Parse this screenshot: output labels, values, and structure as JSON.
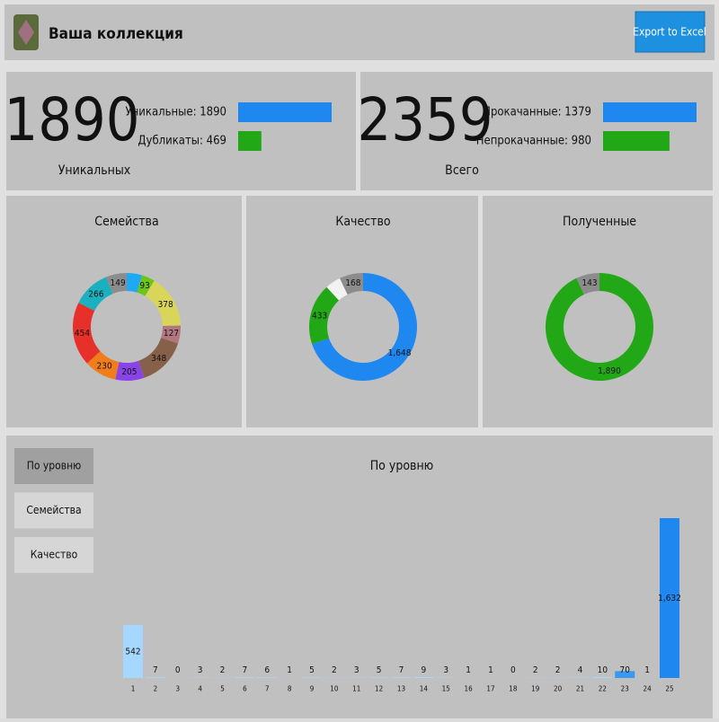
{
  "header": {
    "title": "Ваша коллекция",
    "button": "Export to Excel"
  },
  "stats": [
    {
      "big": "1890",
      "caption": "Уникальных",
      "bars": [
        {
          "label": "Уникальные: 1890",
          "value": 1890,
          "color": "#1e88f0"
        },
        {
          "label": "Дубликаты: 469",
          "value": 469,
          "color": "#22a816"
        }
      ]
    },
    {
      "big": "2359",
      "caption": "Всего",
      "bars": [
        {
          "label": "Прокачанные: 1379",
          "value": 1379,
          "color": "#1e88f0"
        },
        {
          "label": "Непрокачанные: 980",
          "value": 980,
          "color": "#22a816"
        }
      ]
    }
  ],
  "donuts": [
    {
      "type": "pie",
      "title": "Семейства",
      "values": [
        109,
        93,
        378,
        127,
        348,
        205,
        230,
        454,
        266,
        149
      ],
      "value_labels": [
        null,
        "93",
        "378",
        "127",
        "348",
        "205",
        "230",
        "454",
        "266",
        "149"
      ],
      "colors": [
        "#1ea8f5",
        "#6cc61a",
        "#d9d45a",
        "#b0787e",
        "#87604a",
        "#8844e6",
        "#f07c1a",
        "#e8302a",
        "#1ab0c0",
        "#8c8c8c"
      ]
    },
    {
      "type": "pie",
      "title": "Качество",
      "values": [
        1648,
        433,
        110,
        168
      ],
      "value_labels": [
        "1,648",
        "433",
        null,
        "168"
      ],
      "colors": [
        "#1e88f0",
        "#22a816",
        "#f2f2f2",
        "#8c8c8c"
      ]
    },
    {
      "type": "pie",
      "title": "Полученные",
      "values": [
        1890,
        143
      ],
      "value_labels": [
        "1,890",
        "143"
      ],
      "colors": [
        "#22a816",
        "#8c8c8c"
      ]
    }
  ],
  "tabs": [
    "По уровню",
    "Семейства",
    "Качество"
  ],
  "chart_data": {
    "type": "bar",
    "title": "По уровню",
    "categories": [
      "1",
      "2",
      "3",
      "4",
      "5",
      "6",
      "7",
      "8",
      "9",
      "10",
      "11",
      "12",
      "13",
      "14",
      "15",
      "16",
      "17",
      "18",
      "19",
      "20",
      "21",
      "22",
      "23",
      "24",
      "25"
    ],
    "values": [
      542,
      7,
      0,
      3,
      2,
      7,
      6,
      1,
      5,
      2,
      3,
      5,
      7,
      9,
      3,
      1,
      1,
      0,
      2,
      2,
      4,
      10,
      70,
      1,
      1632
    ],
    "value_labels": [
      "542",
      "7",
      "0",
      "3",
      "2",
      "7",
      "6",
      "1",
      "5",
      "2",
      "3",
      "5",
      "7",
      "9",
      "3",
      "1",
      "1",
      "0",
      "2",
      "2",
      "4",
      "10",
      "70",
      "1",
      "1,632"
    ],
    "colors": [
      "#a6d8ff",
      "#a6d8ff",
      "#a6d8ff",
      "#a6d8ff",
      "#a6d8ff",
      "#a6d8ff",
      "#a6d8ff",
      "#a6d8ff",
      "#a6d8ff",
      "#a6d8ff",
      "#a6d8ff",
      "#a6d8ff",
      "#a6d8ff",
      "#a6d8ff",
      "#a6d8ff",
      "#a6d8ff",
      "#a6d8ff",
      "#a6d8ff",
      "#a6d8ff",
      "#a6d8ff",
      "#a6d8ff",
      "#a6d8ff",
      "#3a98f0",
      "#a6d8ff",
      "#1e88f0"
    ]
  }
}
